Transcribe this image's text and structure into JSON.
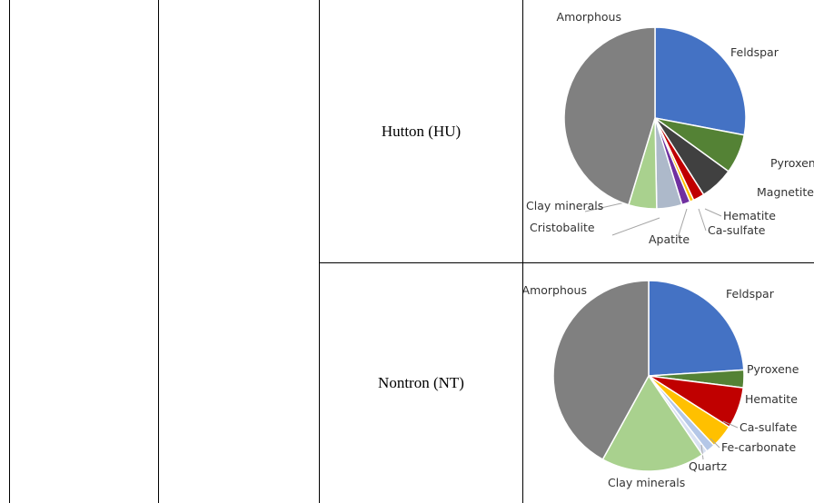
{
  "rows": [
    {
      "label": "Hutton (HU)"
    },
    {
      "label": "Nontron (NT)"
    }
  ],
  "chart_data": [
    {
      "type": "pie",
      "slices": [
        {
          "name": "Feldspar",
          "value": 28,
          "color": "#4472C4"
        },
        {
          "name": "Pyroxene",
          "value": 7,
          "color": "#548235"
        },
        {
          "name": "Magnetite",
          "value": 6,
          "color": "#404040"
        },
        {
          "name": "Hematite",
          "value": 2,
          "color": "#C00000"
        },
        {
          "name": "Ca-sulfate",
          "value": 0.7,
          "color": "#FFC000"
        },
        {
          "name": "Apatite",
          "value": 1.5,
          "color": "#7030A0"
        },
        {
          "name": "Cristobalite",
          "value": 4.5,
          "color": "#ADB9CA"
        },
        {
          "name": "Clay minerals",
          "value": 5,
          "color": "#A9D18E"
        },
        {
          "name": "Amorphous",
          "value": 45.3,
          "color": "#808080"
        }
      ]
    },
    {
      "type": "pie",
      "slices": [
        {
          "name": "Feldspar",
          "value": 24,
          "color": "#4472C4"
        },
        {
          "name": "Pyroxene",
          "value": 3,
          "color": "#548235"
        },
        {
          "name": "Hematite",
          "value": 7,
          "color": "#C00000"
        },
        {
          "name": "Ca-sulfate",
          "value": 4,
          "color": "#FFC000"
        },
        {
          "name": "Fe-carbonate",
          "value": 1.5,
          "color": "#B4C7E7"
        },
        {
          "name": "Quartz",
          "value": 1,
          "color": "#D9E1F2"
        },
        {
          "name": "Clay minerals",
          "value": 17.5,
          "color": "#A9D18E"
        },
        {
          "name": "Amorphous",
          "value": 42,
          "color": "#808080"
        }
      ]
    }
  ]
}
